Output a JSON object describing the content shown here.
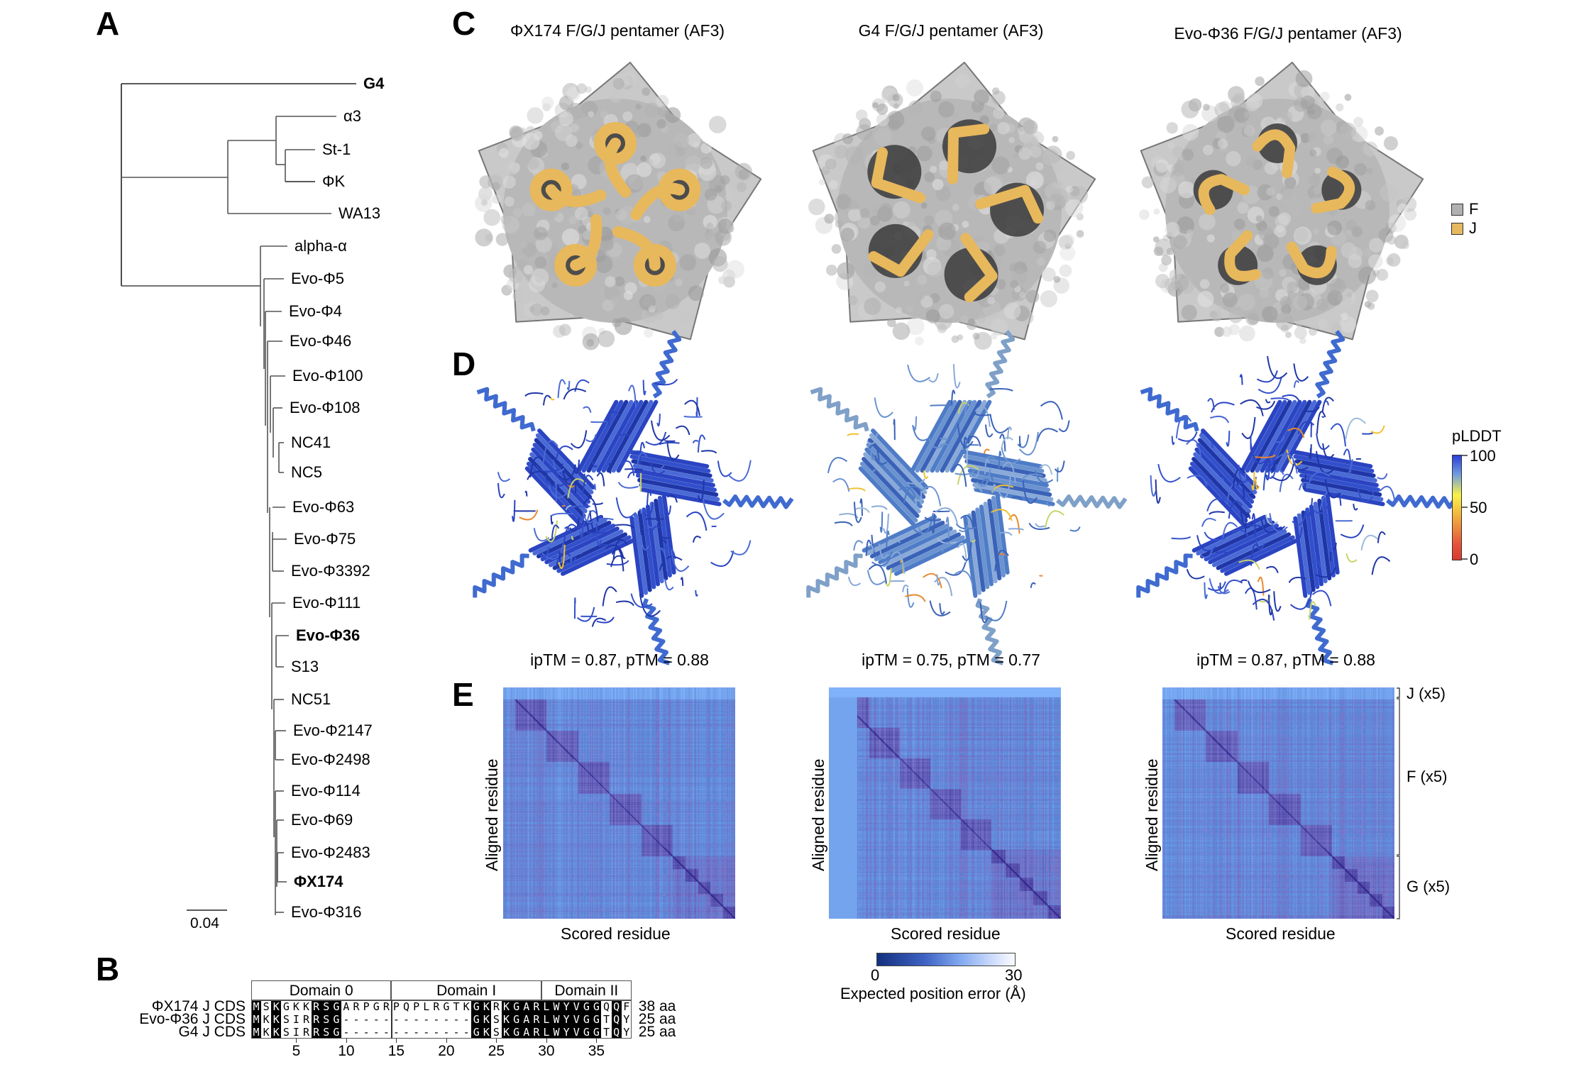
{
  "panels": {
    "A": "A",
    "B": "B",
    "C": "C",
    "D": "D",
    "E": "E"
  },
  "tree": {
    "scale_bar_label": "0.04",
    "leaves": [
      {
        "label": "G4",
        "bold": true
      },
      {
        "label": "α3",
        "bold": false
      },
      {
        "label": "St-1",
        "bold": false
      },
      {
        "label": "ΦK",
        "bold": false
      },
      {
        "label": "WA13",
        "bold": false
      },
      {
        "label": "alpha-α",
        "bold": false
      },
      {
        "label": "Evo-Φ5",
        "bold": false
      },
      {
        "label": "Evo-Φ4",
        "bold": false
      },
      {
        "label": "Evo-Φ46",
        "bold": false
      },
      {
        "label": "Evo-Φ100",
        "bold": false
      },
      {
        "label": "Evo-Φ108",
        "bold": false
      },
      {
        "label": "NC41",
        "bold": false
      },
      {
        "label": "NC5",
        "bold": false
      },
      {
        "label": "Evo-Φ63",
        "bold": false
      },
      {
        "label": "Evo-Φ75",
        "bold": false
      },
      {
        "label": "Evo-Φ3392",
        "bold": false
      },
      {
        "label": "Evo-Φ111",
        "bold": false
      },
      {
        "label": "Evo-Φ36",
        "bold": true
      },
      {
        "label": "S13",
        "bold": false
      },
      {
        "label": "NC51",
        "bold": false
      },
      {
        "label": "Evo-Φ2147",
        "bold": false
      },
      {
        "label": "Evo-Φ2498",
        "bold": false
      },
      {
        "label": "Evo-Φ114",
        "bold": false
      },
      {
        "label": "Evo-Φ69",
        "bold": false
      },
      {
        "label": "Evo-Φ2483",
        "bold": false
      },
      {
        "label": "ΦX174",
        "bold": true
      },
      {
        "label": "Evo-Φ316",
        "bold": false
      }
    ]
  },
  "alignment": {
    "domains": [
      "Domain 0",
      "Domain I",
      "Domain II"
    ],
    "rows": [
      {
        "label": "ΦX174 J CDS",
        "seq": "MSKGKKRSGARPGRPQPLRGTKGKRKGARLWYVGGQQF",
        "length": "38 aa"
      },
      {
        "label": "Evo-Φ36 J CDS",
        "seq": "MKKSIRRSG-------------GKSKGARLWYVGGTQY",
        "length": "25 aa"
      },
      {
        "label": "G4 J CDS",
        "seq": "MKKSIRRSG-------------GKSKGARLWYVGGTQY",
        "length": "25 aa"
      }
    ],
    "conserved_columns": [
      1,
      3,
      7,
      8,
      9,
      23,
      24,
      26,
      27,
      28,
      29,
      30,
      31,
      32,
      33,
      34,
      35,
      37
    ],
    "ticks": [
      "5",
      "10",
      "15",
      "20",
      "25",
      "30",
      "35"
    ]
  },
  "structures": [
    {
      "title": "ΦX174 F/G/J pentamer (AF3)",
      "metrics": "ipTM = 0.87, pTM = 0.88"
    },
    {
      "title": "G4 F/G/J pentamer (AF3)",
      "metrics": "ipTM = 0.75, pTM = 0.77"
    },
    {
      "title": "Evo-Φ36 F/G/J pentamer (AF3)",
      "metrics": "ipTM = 0.87, pTM = 0.88"
    }
  ],
  "surface_legend": [
    {
      "label": "F",
      "color": "#b4b4b4"
    },
    {
      "label": "J",
      "color": "#e6b860"
    }
  ],
  "plddt_legend": {
    "title": "pLDDT",
    "ticks": [
      "100",
      "50",
      "0"
    ]
  },
  "pae": {
    "xlabel": "Scored residue",
    "ylabel": "Aligned residue",
    "chain_labels": [
      "J (x5)",
      "F (x5)",
      "G (x5)"
    ],
    "colorbar_ticks": [
      "0",
      "30"
    ],
    "colorbar_label": "Expected position error (Å)"
  },
  "colors": {
    "surface_gray": "#a8a8a8",
    "j_gold": "#e8b85c",
    "pae_dark": "#1a3a8c",
    "pae_light": "#f4f7ff",
    "ribbon_blue": "#2f4fc8"
  }
}
